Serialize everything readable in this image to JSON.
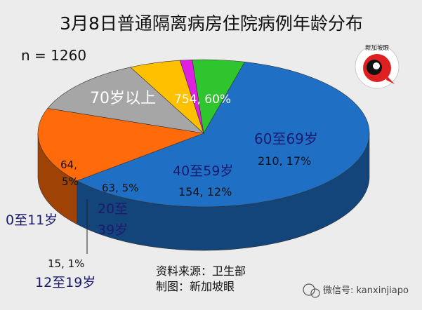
{
  "chart_data": {
    "type": "pie",
    "title": "3月8日普通隔离病房住院病例年龄分布",
    "subtitle": "n = 1260",
    "slices": [
      {
        "category": "70岁以上",
        "count": 754,
        "value_label": "754, 60%",
        "color": "#1f6fc5"
      },
      {
        "category": "60至69岁",
        "count": 210,
        "value_label": "210, 17%",
        "color": "#ff6a0a"
      },
      {
        "category": "40至59岁",
        "count": 154,
        "value_label": "154, 12%",
        "color": "#a6a6a6"
      },
      {
        "category": "20至39岁",
        "count": 63,
        "value_label": "63, 5%",
        "color": "#ffc000"
      },
      {
        "category": "12至19岁",
        "count": 15,
        "value_label": "15, 1%",
        "color": "#e020e0"
      },
      {
        "category": "0至11岁",
        "count": 64,
        "value_label": "64, 5%",
        "color": "#2ec52e"
      }
    ]
  },
  "footer": {
    "source": "资料来源：卫生部",
    "made_by": "制图：新加坡眼"
  },
  "logo": {
    "text": "新加坡眼"
  },
  "watermark": {
    "text": "微信号: kanxinjiapo"
  }
}
